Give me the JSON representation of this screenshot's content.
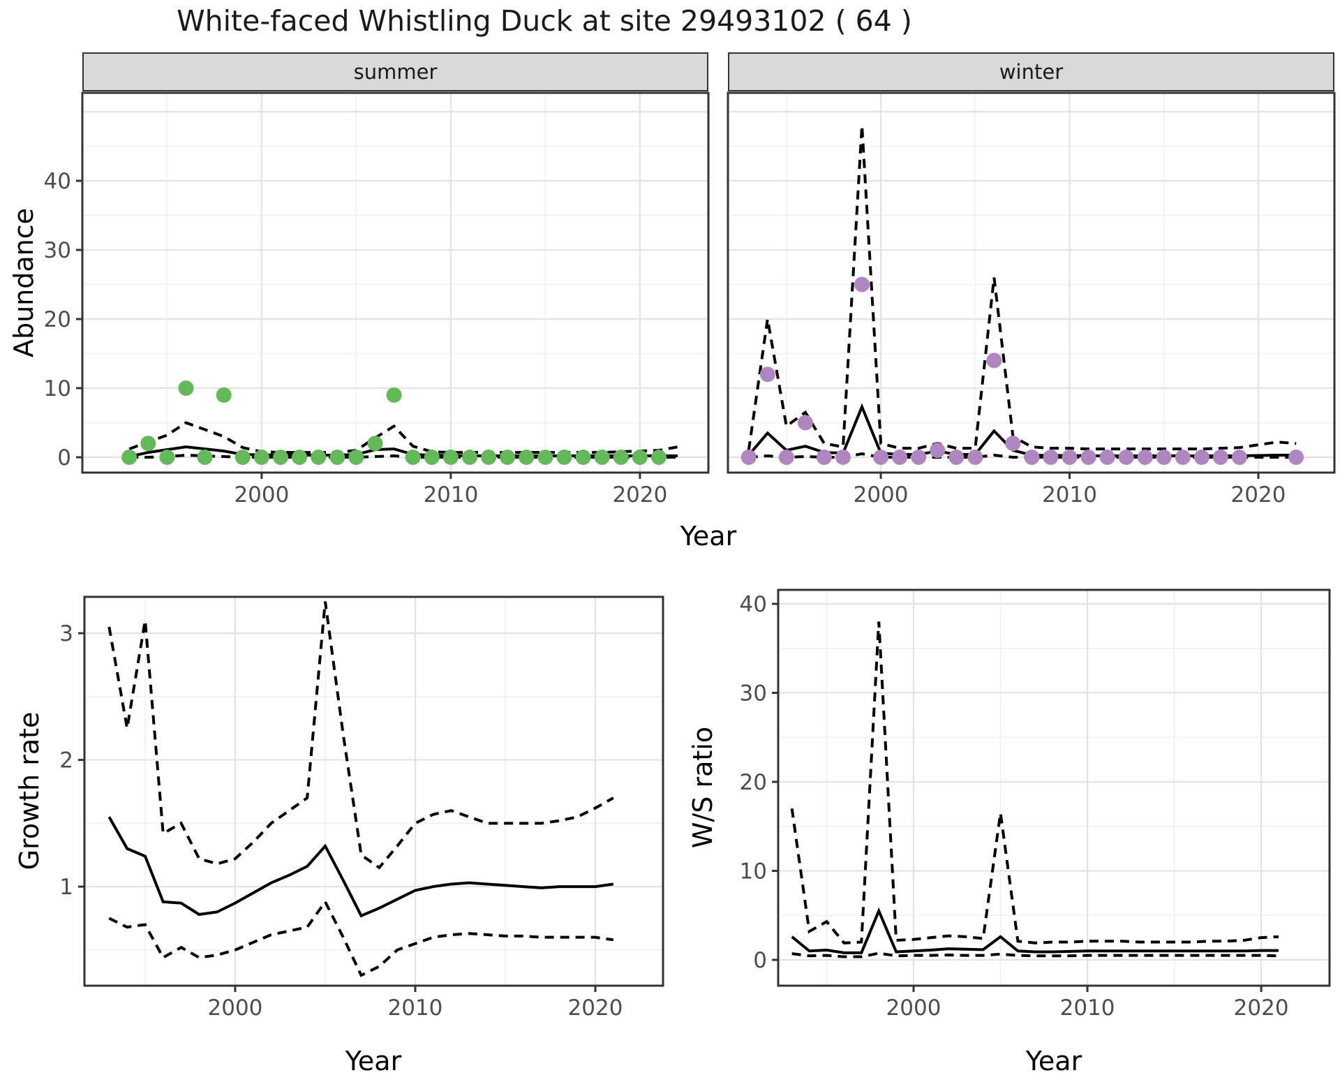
{
  "title": "White-faced Whistling Duck at site 29493102 ( 64 )",
  "facets": {
    "summer_label": "summer",
    "winter_label": "winter"
  },
  "axis_titles": {
    "abundance": "Abundance",
    "year_top": "Year",
    "growth": "Growth rate",
    "year_growth": "Year",
    "ws": "W/S ratio",
    "year_ws": "Year"
  },
  "colors": {
    "summer": "#62ba56",
    "winter": "#b086c1",
    "line": "#000000",
    "grid_major": "#e3e3e3",
    "grid_minor": "#f0f0f0",
    "strip_bg": "#d9d9d9",
    "panel_border": "#333333",
    "tick_label": "#4d4d4d"
  },
  "chart_data": [
    {
      "id": "abundance_summer",
      "type": "scatter",
      "facet_label": "summer",
      "xlabel": "Year",
      "ylabel": "Abundance",
      "xlim": [
        1990.52,
        2023.62
      ],
      "ylim": [
        -2.22,
        52.73
      ],
      "xticks": [
        2000,
        2010,
        2020
      ],
      "xtick_labels": [
        "2000",
        "2010",
        "2020"
      ],
      "xticks_minor": [
        1995,
        2005,
        2015
      ],
      "yticks": [
        0,
        10,
        20,
        30,
        40,
        50
      ],
      "ytick_labels": [
        "0",
        "10",
        "20",
        "30",
        "40",
        ""
      ],
      "yticks_minor": [
        5,
        15,
        25,
        35,
        45
      ],
      "points": {
        "color": "summer",
        "years": [
          1993,
          1994,
          1995,
          1996,
          1997,
          1998,
          1999,
          2000,
          2001,
          2002,
          2003,
          2004,
          2005,
          2006,
          2007,
          2008,
          2009,
          2010,
          2011,
          2012,
          2013,
          2014,
          2015,
          2016,
          2017,
          2018,
          2019,
          2020,
          2021
        ],
        "values": [
          0,
          2,
          0,
          10,
          0,
          9,
          0,
          0,
          0,
          0,
          0,
          0,
          0,
          2,
          9,
          0,
          0,
          0,
          0,
          0,
          0,
          0,
          0,
          0,
          0,
          0,
          0,
          0,
          0
        ]
      },
      "fit": {
        "years": [
          1993,
          1994,
          1995,
          1996,
          1997,
          1998,
          1999,
          2000,
          2001,
          2002,
          2003,
          2004,
          2005,
          2006,
          2007,
          2008,
          2009,
          2010,
          2011,
          2012,
          2013,
          2014,
          2015,
          2016,
          2017,
          2018,
          2019,
          2020,
          2021,
          2022
        ],
        "median": [
          0.1,
          0.7,
          1.1,
          1.5,
          1.2,
          0.9,
          0.4,
          0.35,
          0.3,
          0.3,
          0.3,
          0.3,
          0.4,
          1.1,
          1.2,
          0.4,
          0.3,
          0.25,
          0.2,
          0.2,
          0.2,
          0.2,
          0.2,
          0.2,
          0.2,
          0.2,
          0.2,
          0.2,
          0.2,
          0.2
        ],
        "upper": [
          1.2,
          2.2,
          3.2,
          5.0,
          4.0,
          3.0,
          1.4,
          0.8,
          0.7,
          0.7,
          0.7,
          0.7,
          1.0,
          2.8,
          4.5,
          1.6,
          0.8,
          0.7,
          0.7,
          0.7,
          0.7,
          0.7,
          0.7,
          0.7,
          0.7,
          0.7,
          0.8,
          0.9,
          1.0,
          1.5
        ],
        "lower": [
          0,
          0,
          0.1,
          0.3,
          0.2,
          0.1,
          0,
          0,
          0,
          0,
          0,
          0,
          0,
          0.1,
          0.2,
          0,
          0,
          0,
          0,
          0,
          0,
          0,
          0,
          0,
          0,
          0,
          0,
          0,
          0,
          0
        ]
      }
    },
    {
      "id": "abundance_winter",
      "type": "scatter",
      "facet_label": "winter",
      "xlabel": "Year",
      "ylabel": "Abundance",
      "xlim": [
        1991.9,
        2024.03
      ],
      "ylim": [
        -2.22,
        52.73
      ],
      "xticks": [
        2000,
        2010,
        2020
      ],
      "xtick_labels": [
        "2000",
        "2010",
        "2020"
      ],
      "xticks_minor": [
        1995,
        2005,
        2015
      ],
      "yticks": [
        0,
        10,
        20,
        30,
        40,
        50
      ],
      "ytick_labels": [
        "0",
        "10",
        "20",
        "30",
        "40",
        ""
      ],
      "yticks_minor": [
        5,
        15,
        25,
        35,
        45
      ],
      "points": {
        "color": "winter",
        "years": [
          1993,
          1994,
          1995,
          1996,
          1997,
          1998,
          1999,
          2000,
          2001,
          2002,
          2003,
          2004,
          2005,
          2006,
          2007,
          2008,
          2009,
          2010,
          2011,
          2012,
          2013,
          2014,
          2015,
          2016,
          2017,
          2018,
          2019,
          2022
        ],
        "values": [
          0,
          12,
          0,
          5,
          0,
          0,
          25,
          0,
          0,
          0,
          1,
          0,
          0,
          14,
          2,
          0,
          0,
          0,
          0,
          0,
          0,
          0,
          0,
          0,
          0,
          0,
          0,
          0
        ]
      },
      "fit": {
        "years": [
          1993,
          1994,
          1995,
          1996,
          1997,
          1998,
          1999,
          2000,
          2001,
          2002,
          2003,
          2004,
          2005,
          2006,
          2007,
          2008,
          2009,
          2010,
          2011,
          2012,
          2013,
          2014,
          2015,
          2016,
          2017,
          2018,
          2019,
          2020,
          2021,
          2022
        ],
        "median": [
          0.3,
          3.5,
          1.0,
          1.6,
          0.7,
          0.6,
          7.3,
          0.6,
          0.4,
          0.4,
          0.9,
          0.4,
          0.4,
          3.8,
          1.0,
          0.3,
          0.25,
          0.25,
          0.2,
          0.2,
          0.2,
          0.2,
          0.2,
          0.2,
          0.2,
          0.2,
          0.2,
          0.25,
          0.3,
          0.3
        ],
        "upper": [
          1.0,
          20,
          4.5,
          6.5,
          2.0,
          1.5,
          48,
          2.0,
          1.3,
          1.3,
          2.0,
          1.3,
          1.3,
          26,
          3.0,
          1.5,
          1.3,
          1.3,
          1.2,
          1.2,
          1.2,
          1.2,
          1.2,
          1.2,
          1.2,
          1.3,
          1.4,
          1.8,
          2.2,
          2.0
        ],
        "lower": [
          0,
          0.2,
          0,
          0.1,
          0,
          0,
          0.5,
          0,
          0,
          0,
          0,
          0,
          0,
          0.3,
          0,
          0,
          0,
          0,
          0,
          0,
          0,
          0,
          0,
          0,
          0,
          0,
          0,
          0,
          0,
          0
        ]
      }
    },
    {
      "id": "growth_rate",
      "type": "line",
      "xlabel": "Year",
      "ylabel": "Growth rate",
      "xlim": [
        1991.63,
        2023.76
      ],
      "ylim": [
        0.218,
        3.287
      ],
      "xticks": [
        2000,
        2010,
        2020
      ],
      "xtick_labels": [
        "2000",
        "2010",
        "2020"
      ],
      "xticks_minor": [
        1995,
        2005,
        2015
      ],
      "yticks": [
        1,
        2,
        3
      ],
      "ytick_labels": [
        "1",
        "2",
        "3"
      ],
      "yticks_minor": [
        0.5,
        1.5,
        2.5
      ],
      "fit": {
        "years": [
          1993,
          1994,
          1995,
          1996,
          1997,
          1998,
          1999,
          2000,
          2001,
          2002,
          2003,
          2004,
          2005,
          2006,
          2007,
          2008,
          2009,
          2010,
          2011,
          2012,
          2013,
          2014,
          2015,
          2016,
          2017,
          2018,
          2019,
          2020,
          2021
        ],
        "median": [
          1.55,
          1.3,
          1.24,
          0.88,
          0.87,
          0.78,
          0.8,
          0.87,
          0.95,
          1.03,
          1.09,
          1.16,
          1.32,
          1.05,
          0.77,
          0.83,
          0.9,
          0.97,
          1.0,
          1.02,
          1.03,
          1.02,
          1.01,
          1.0,
          0.99,
          1.0,
          1.0,
          1.0,
          1.02
        ],
        "upper": [
          3.05,
          2.25,
          3.1,
          1.42,
          1.5,
          1.22,
          1.18,
          1.22,
          1.35,
          1.5,
          1.6,
          1.7,
          3.25,
          2.2,
          1.25,
          1.15,
          1.32,
          1.5,
          1.57,
          1.6,
          1.55,
          1.5,
          1.5,
          1.5,
          1.5,
          1.52,
          1.55,
          1.62,
          1.7
        ],
        "lower": [
          0.75,
          0.68,
          0.7,
          0.44,
          0.52,
          0.44,
          0.46,
          0.5,
          0.56,
          0.62,
          0.65,
          0.68,
          0.88,
          0.6,
          0.3,
          0.37,
          0.5,
          0.55,
          0.6,
          0.62,
          0.63,
          0.62,
          0.61,
          0.61,
          0.6,
          0.6,
          0.6,
          0.6,
          0.58
        ]
      }
    },
    {
      "id": "ws_ratio",
      "type": "line",
      "xlabel": "Year",
      "ylabel": "W/S ratio",
      "xlim": [
        1992.21,
        2023.93
      ],
      "ylim": [
        -2.9,
        41.57
      ],
      "xticks": [
        2000,
        2010,
        2020
      ],
      "xtick_labels": [
        "2000",
        "2010",
        "2020"
      ],
      "xticks_minor": [
        1995,
        2005,
        2015
      ],
      "yticks": [
        0,
        10,
        20,
        30,
        40
      ],
      "ytick_labels": [
        "0",
        "10",
        "20",
        "30",
        "40"
      ],
      "yticks_minor": [
        5,
        15,
        25,
        35
      ],
      "fit": {
        "years": [
          1993,
          1994,
          1995,
          1996,
          1997,
          1998,
          1999,
          2000,
          2001,
          2002,
          2003,
          2004,
          2005,
          2006,
          2007,
          2008,
          2009,
          2010,
          2011,
          2012,
          2013,
          2014,
          2015,
          2016,
          2017,
          2018,
          2019,
          2020,
          2021
        ],
        "median": [
          2.6,
          1.0,
          1.1,
          0.8,
          0.8,
          5.5,
          0.9,
          1.0,
          1.1,
          1.25,
          1.2,
          1.15,
          2.6,
          1.0,
          0.9,
          0.9,
          0.95,
          1.0,
          1.0,
          1.0,
          1.0,
          1.0,
          1.0,
          1.0,
          1.0,
          1.0,
          1.0,
          1.05,
          1.05
        ],
        "upper": [
          17,
          3.2,
          4.3,
          1.9,
          2.0,
          38,
          2.2,
          2.3,
          2.5,
          2.7,
          2.6,
          2.4,
          16.5,
          2.1,
          1.9,
          2.0,
          2.0,
          2.1,
          2.1,
          2.1,
          2.0,
          2.0,
          2.0,
          2.0,
          2.1,
          2.1,
          2.2,
          2.5,
          2.6
        ],
        "lower": [
          0.7,
          0.45,
          0.5,
          0.35,
          0.35,
          0.75,
          0.45,
          0.5,
          0.5,
          0.55,
          0.5,
          0.5,
          0.65,
          0.5,
          0.45,
          0.45,
          0.45,
          0.5,
          0.5,
          0.5,
          0.5,
          0.5,
          0.5,
          0.5,
          0.5,
          0.5,
          0.5,
          0.5,
          0.45
        ]
      }
    }
  ]
}
